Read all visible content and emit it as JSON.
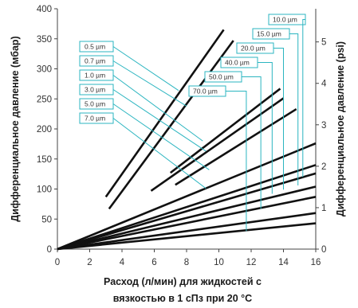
{
  "chart_data": {
    "type": "line",
    "title": "",
    "xlabel_lines": [
      "Расход (л/мин) для жидкостей с",
      "вязкостью в 1 сПз при 20 °C"
    ],
    "ylabel_left": "Дифференциальное давление (мбар)",
    "ylabel_right": "Дифференциальное давление (psi)",
    "xlim": [
      0,
      16
    ],
    "ylim": [
      0,
      400
    ],
    "ylim_right": [
      0,
      5.8
    ],
    "x_ticks": [
      0,
      2,
      4,
      6,
      8,
      10,
      12,
      14,
      16
    ],
    "y_ticks": [
      0,
      50,
      100,
      150,
      200,
      250,
      300,
      350,
      400
    ],
    "y_right_ticks": [
      0,
      1,
      2,
      3,
      4,
      5
    ],
    "grid": false,
    "colors": {
      "series": "#111111",
      "annotation": "#2bb5c0",
      "axis": "#444444"
    },
    "series": [
      {
        "name": "0.5 µm",
        "points": [
          [
            3.0,
            87
          ],
          [
            10.3,
            365
          ]
        ]
      },
      {
        "name": "0.7 µm",
        "points": [
          [
            3.2,
            67
          ],
          [
            10.9,
            347
          ]
        ]
      },
      {
        "name": "1.0 µm",
        "points": [
          [
            7.0,
            127
          ],
          [
            13.8,
            267
          ]
        ]
      },
      {
        "name": "3.0 µm",
        "points": [
          [
            5.8,
            97
          ],
          [
            14.0,
            251
          ]
        ]
      },
      {
        "name": "5.0 µm",
        "points": [
          [
            7.3,
            107
          ],
          [
            14.8,
            233
          ]
        ]
      },
      {
        "name": "7.0 µm",
        "points": [
          [
            0,
            0
          ],
          [
            16.0,
            176
          ]
        ]
      },
      {
        "name": "10.0 µm",
        "points": [
          [
            0,
            0
          ],
          [
            16.0,
            140
          ]
        ]
      },
      {
        "name": "15.0 µm",
        "points": [
          [
            0,
            0
          ],
          [
            16.0,
            126
          ]
        ]
      },
      {
        "name": "20.0 µm",
        "points": [
          [
            0,
            0
          ],
          [
            16.0,
            104
          ]
        ]
      },
      {
        "name": "40.0 µm",
        "points": [
          [
            0,
            0
          ],
          [
            16.0,
            87
          ]
        ]
      },
      {
        "name": "50.0 µm",
        "points": [
          [
            0,
            0
          ],
          [
            16.0,
            60
          ]
        ]
      },
      {
        "name": "70.0 µm",
        "points": [
          [
            0,
            0
          ],
          [
            16.0,
            43
          ]
        ]
      }
    ],
    "annotations": {
      "left": [
        {
          "label": "0.5 µm",
          "target": [
            7.5,
            264
          ]
        },
        {
          "label": "0.7 µm",
          "target": [
            8.0,
            238
          ]
        },
        {
          "label": "1.0 µm",
          "target": [
            9.0,
            180
          ]
        },
        {
          "label": "3.0 µm",
          "target": [
            9.2,
            163
          ]
        },
        {
          "label": "5.0 µm",
          "target": [
            9.4,
            132
          ]
        },
        {
          "label": "7.0 µm",
          "target": [
            9.2,
            101
          ]
        }
      ],
      "right": [
        {
          "label": "10.0 µm",
          "target": [
            15.2,
            120
          ]
        },
        {
          "label": "15.0 µm",
          "target": [
            14.9,
            106
          ]
        },
        {
          "label": "20.0 µm",
          "target": [
            14.0,
            99
          ]
        },
        {
          "label": "40.0 µm",
          "target": [
            13.3,
            92
          ]
        },
        {
          "label": "50.0 µm",
          "target": [
            12.6,
            67
          ]
        },
        {
          "label": "70.0 µm",
          "target": [
            11.7,
            30
          ]
        }
      ]
    }
  }
}
